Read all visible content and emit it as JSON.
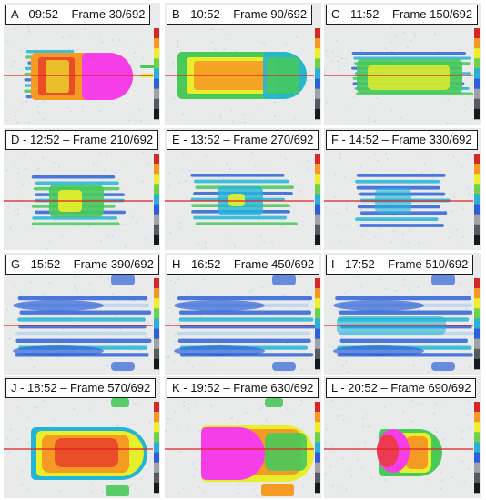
{
  "colors": {
    "background": "#e9eaea",
    "noise": "#b9d3ee",
    "cold": "#2f63d8",
    "cool": "#23b5d6",
    "mid": "#48c95a",
    "warm": "#e9ee2a",
    "hot": "#f59a23",
    "hotter": "#ea3a2a",
    "hottest": "#f53ee8",
    "profile_line": "#e02020",
    "scale_bar": [
      "#d62728",
      "#f49a22",
      "#eeee2a",
      "#6cd14b",
      "#2cb0d6",
      "#2f5fd8",
      "#9fa2a6",
      "#575b60",
      "#16191c"
    ]
  },
  "panels": [
    {
      "label": "A - 09:52 – Frame 30/692",
      "stage": "A"
    },
    {
      "label": "B - 10:52 – Frame 90/692",
      "stage": "B"
    },
    {
      "label": "C - 11:52 – Frame 150/692",
      "stage": "C"
    },
    {
      "label": "D - 12:52 – Frame 210/692",
      "stage": "D"
    },
    {
      "label": "E - 13:52 – Frame 270/692",
      "stage": "E"
    },
    {
      "label": "F - 14:52 – Frame 330/692",
      "stage": "F"
    },
    {
      "label": "G - 15:52 – Frame 390/692",
      "stage": "G"
    },
    {
      "label": "H - 16:52 – Frame 450/692",
      "stage": "H"
    },
    {
      "label": "I - 17:52 – Frame 510/692",
      "stage": "I"
    },
    {
      "label": "J - 18:52 – Frame 570/692",
      "stage": "J"
    },
    {
      "label": "K - 19:52 – Frame 630/692",
      "stage": "K"
    },
    {
      "label": "L - 20:52 – Frame 690/692",
      "stage": "L"
    }
  ]
}
